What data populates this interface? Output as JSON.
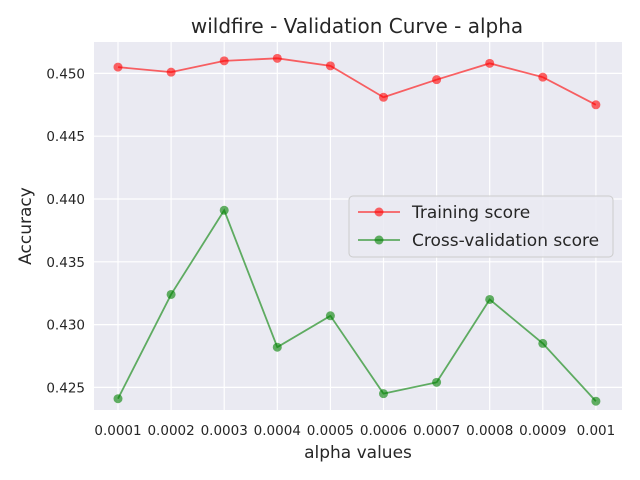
{
  "chart_data": {
    "type": "line",
    "title": "wildfire - Validation Curve - alpha",
    "xlabel": "alpha values",
    "ylabel": "Accuracy",
    "categories": [
      "0.0001",
      "0.0002",
      "0.0003",
      "0.0004",
      "0.0005",
      "0.0006",
      "0.0007",
      "0.0008",
      "0.0009",
      "0.001"
    ],
    "ylim": [
      0.4232,
      0.4525
    ],
    "yticks": [
      0.425,
      0.43,
      0.435,
      0.44,
      0.445,
      0.45
    ],
    "ytick_labels": [
      "0.425",
      "0.430",
      "0.435",
      "0.440",
      "0.445",
      "0.450"
    ],
    "grid": true,
    "legend_position": "center-right",
    "series": [
      {
        "name": "Training score",
        "color": "#ff0000",
        "values": [
          0.4505,
          0.4501,
          0.451,
          0.4512,
          0.4506,
          0.4481,
          0.4495,
          0.4508,
          0.4497,
          0.4475
        ]
      },
      {
        "name": "Cross-validation score",
        "color": "#008000",
        "values": [
          0.4241,
          0.4324,
          0.4391,
          0.4282,
          0.4307,
          0.4245,
          0.4254,
          0.432,
          0.4285,
          0.4239
        ]
      }
    ]
  }
}
